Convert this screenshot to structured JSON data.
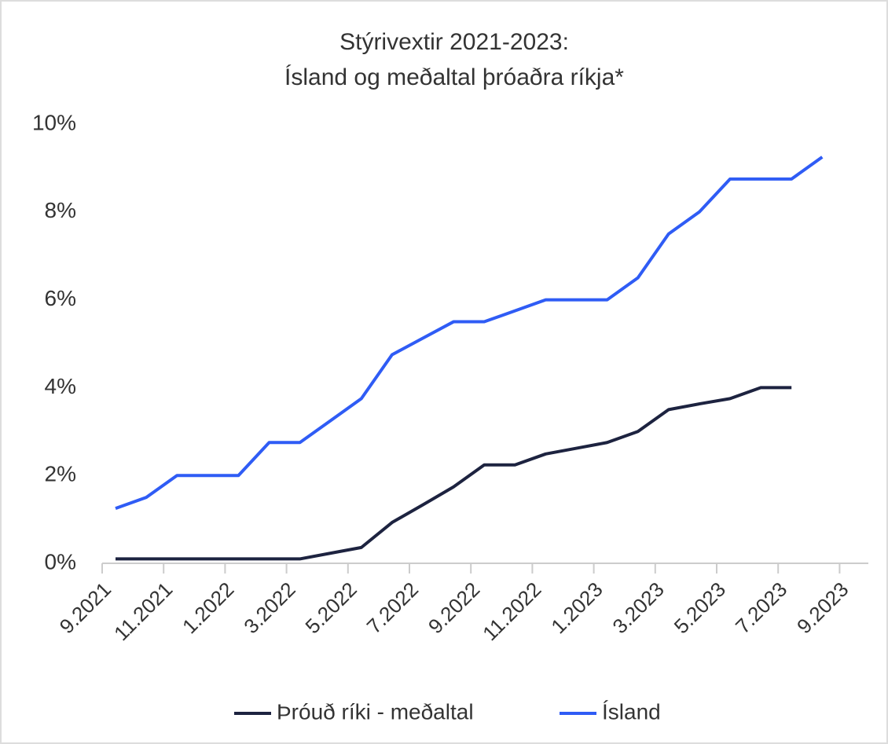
{
  "chart_data": {
    "type": "line",
    "title": "Stýrivextir 2021-2023:",
    "subtitle": "Ísland og meðaltal þróaðra ríkja*",
    "categories": [
      "9.2021",
      null,
      "11.2021",
      null,
      "1.2022",
      null,
      "3.2022",
      null,
      "5.2022",
      null,
      "7.2022",
      null,
      "9.2022",
      null,
      "11.2022",
      null,
      "1.2023",
      null,
      "3.2023",
      null,
      "5.2023",
      null,
      "7.2023",
      null,
      "9.2023"
    ],
    "series": [
      {
        "name": "Þróuð ríki - meðaltal",
        "color": "#1d2340",
        "values": [
          0.1,
          0.1,
          0.1,
          0.1,
          0.1,
          0.1,
          0.1,
          0.23,
          0.36,
          0.93,
          1.33,
          1.74,
          2.24,
          2.24,
          2.49,
          2.62,
          2.75,
          3.0,
          3.5,
          3.63,
          3.75,
          4.0,
          4.0,
          null,
          null
        ]
      },
      {
        "name": "Ísland",
        "color": "#2f5cf5",
        "values": [
          1.25,
          1.5,
          2,
          2,
          2,
          2.75,
          2.75,
          3.25,
          3.75,
          4.75,
          5.125,
          5.5,
          5.5,
          5.75,
          6,
          6,
          6,
          6.5,
          7.5,
          8,
          8.75,
          8.75,
          8.75,
          9.25,
          null
        ]
      }
    ],
    "ylim": [
      0,
      10
    ],
    "yticks": [
      {
        "value": 0,
        "label": "0%"
      },
      {
        "value": 2,
        "label": "2%"
      },
      {
        "value": 4,
        "label": "4%"
      },
      {
        "value": 6,
        "label": "6%"
      },
      {
        "value": 8,
        "label": "8%"
      },
      {
        "value": 10,
        "label": "10%"
      }
    ],
    "grid": false,
    "legend": "bottom"
  }
}
